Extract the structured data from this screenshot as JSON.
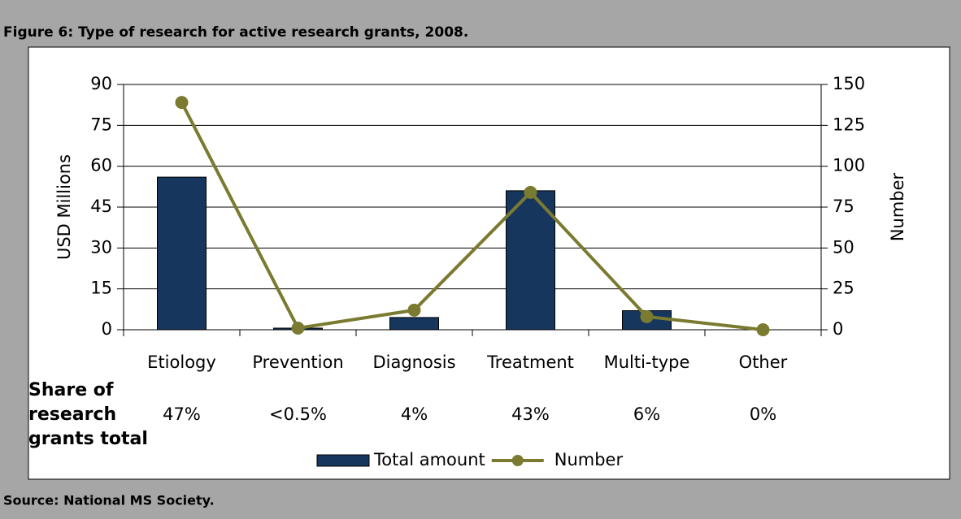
{
  "chart_data": {
    "type": "bar",
    "title": "Figure 6: Type of research for active research grants, 2008.",
    "source": "Source: National MS Society.",
    "categories": [
      "Etiology",
      "Prevention",
      "Diagnosis",
      "Treatment",
      "Multi-type",
      "Other"
    ],
    "series": [
      {
        "name": "Total amount",
        "type": "bar",
        "color": "#17365d",
        "values": [
          56,
          0.6,
          4.5,
          51,
          7,
          0
        ]
      },
      {
        "name": "Number",
        "type": "line",
        "axis": "y2",
        "color": "#7a7a30",
        "values": [
          139,
          1,
          12,
          84,
          8,
          0
        ]
      }
    ],
    "ylabel": "USD Millions",
    "y2label": "Number",
    "ylim": [
      0,
      90
    ],
    "yticks": [
      0,
      15,
      30,
      45,
      60,
      75,
      90
    ],
    "y2lim": [
      0,
      150
    ],
    "y2ticks": [
      0,
      25,
      50,
      75,
      100,
      125,
      150
    ],
    "grid": true,
    "share_label": [
      "Share of",
      "research",
      "grants total"
    ],
    "shares": [
      "47%",
      "<0.5%",
      "4%",
      "43%",
      "6%",
      "0%"
    ]
  }
}
